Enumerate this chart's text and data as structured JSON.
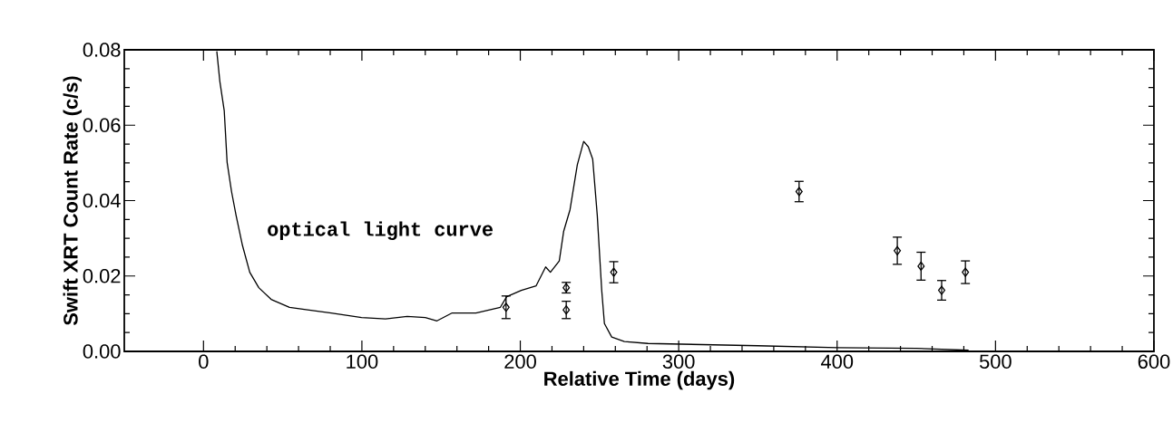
{
  "chart_data": {
    "type": "line",
    "xlabel": "Relative Time (days)",
    "ylabel": "Swift XRT Count Rate (c/s)",
    "annotations": [
      "optical light curve"
    ],
    "xlim": [
      -50,
      600
    ],
    "xticks": [
      0,
      100,
      200,
      300,
      400,
      500,
      600
    ],
    "ylim": [
      0,
      0.08
    ],
    "yticks": [
      {
        "value": 0,
        "label": "0.00"
      },
      {
        "value": 0.02,
        "label": "0.02"
      },
      {
        "value": 0.04,
        "label": "0.04"
      },
      {
        "value": 0.06,
        "label": "0.06"
      },
      {
        "value": 0.08,
        "label": "0.08"
      }
    ],
    "series": [
      {
        "color": "#000000",
        "marker": "none",
        "line_style": "solid",
        "x": [
          8.4,
          10.3,
          13.1,
          14.9,
          17.7,
          20.6,
          24.6,
          29.2,
          34.9,
          42.7,
          54.3,
          65.7,
          80.6,
          99.8,
          114.9,
          128.6,
          140,
          147.4,
          157,
          172,
          187.4,
          191.4,
          200.6,
          210,
          216,
          219,
          224.6,
          227.4,
          231.4,
          236,
          240,
          242.9,
          245.7,
          248.6,
          251.4,
          253.1,
          257.7,
          265.7,
          280.6,
          350,
          400,
          450,
          483
        ],
        "values": [
          0.0796,
          0.0717,
          0.0638,
          0.0502,
          0.0424,
          0.036,
          0.0281,
          0.021,
          0.0169,
          0.0138,
          0.0117,
          0.011,
          0.0102,
          0.009,
          0.0086,
          0.0093,
          0.009,
          0.0081,
          0.0102,
          0.0102,
          0.0117,
          0.0145,
          0.0162,
          0.0174,
          0.0224,
          0.021,
          0.024,
          0.0319,
          0.0376,
          0.0495,
          0.0557,
          0.0543,
          0.051,
          0.036,
          0.0162,
          0.0074,
          0.0038,
          0.0026,
          0.0021,
          0.0015,
          0.001,
          0.0008,
          0.0003
        ]
      },
      {
        "type": "scatter",
        "color": "#000000",
        "marker": "diamond",
        "x": [
          191,
          229,
          229,
          259,
          376,
          438,
          453,
          466,
          481
        ],
        "values": [
          0.0117,
          0.0169,
          0.011,
          0.021,
          0.0424,
          0.0267,
          0.0226,
          0.0162,
          0.021
        ],
        "errors": [
          0.003,
          0.0014,
          0.0023,
          0.0028,
          0.0027,
          0.0036,
          0.0037,
          0.0026,
          0.003
        ]
      }
    ]
  }
}
